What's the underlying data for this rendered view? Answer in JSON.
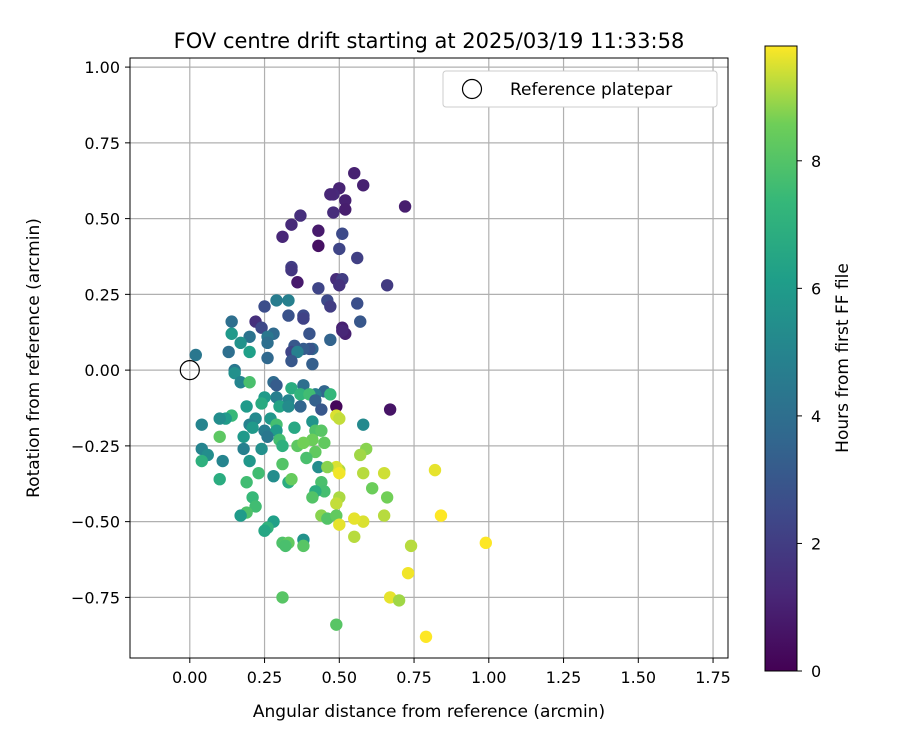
{
  "chart_data": {
    "type": "scatter",
    "title": "FOV centre drift starting at 2025/03/19 11:33:58",
    "xlabel": "Angular distance from reference (arcmin)",
    "ylabel": "Rotation from reference (arcmin)",
    "xlim": [
      -0.2,
      1.8
    ],
    "ylim": [
      -0.95,
      1.03
    ],
    "xticks": [
      0.0,
      0.25,
      0.5,
      0.75,
      1.0,
      1.25,
      1.5,
      1.75
    ],
    "xtick_labels": [
      "0.00",
      "0.25",
      "0.50",
      "0.75",
      "1.00",
      "1.25",
      "1.50",
      "1.75"
    ],
    "yticks": [
      -0.75,
      -0.5,
      -0.25,
      0.0,
      0.25,
      0.5,
      0.75,
      1.0
    ],
    "ytick_labels": [
      "−0.75",
      "−0.50",
      "−0.25",
      "0.00",
      "0.25",
      "0.50",
      "0.75",
      "1.00"
    ],
    "grid": true,
    "legend": {
      "position": "top-right",
      "entries": [
        {
          "label": "Reference platepar",
          "marker": "open-circle"
        }
      ]
    },
    "reference_point": {
      "x": 0.0,
      "y": 0.0
    },
    "colorbar": {
      "label": "Hours from first FF file",
      "colormap": "viridis",
      "range": [
        0,
        9.8
      ],
      "ticks": [
        0,
        2,
        4,
        6,
        8
      ],
      "tick_labels": [
        "0",
        "2",
        "4",
        "6",
        "8"
      ]
    },
    "points": [
      {
        "x": 0.55,
        "y": 0.65,
        "c": 1.0
      },
      {
        "x": 0.58,
        "y": 0.61,
        "c": 1.0
      },
      {
        "x": 0.5,
        "y": 0.6,
        "c": 1.1
      },
      {
        "x": 0.48,
        "y": 0.58,
        "c": 1.3
      },
      {
        "x": 0.47,
        "y": 0.58,
        "c": 1.2
      },
      {
        "x": 0.52,
        "y": 0.56,
        "c": 1.0
      },
      {
        "x": 0.72,
        "y": 0.54,
        "c": 0.9
      },
      {
        "x": 0.52,
        "y": 0.53,
        "c": 0.9
      },
      {
        "x": 0.48,
        "y": 0.52,
        "c": 1.4
      },
      {
        "x": 0.37,
        "y": 0.51,
        "c": 1.5
      },
      {
        "x": 0.34,
        "y": 0.48,
        "c": 1.3
      },
      {
        "x": 0.43,
        "y": 0.46,
        "c": 0.8
      },
      {
        "x": 0.31,
        "y": 0.44,
        "c": 1.2
      },
      {
        "x": 0.51,
        "y": 0.45,
        "c": 2.5
      },
      {
        "x": 0.43,
        "y": 0.41,
        "c": 0.5
      },
      {
        "x": 0.5,
        "y": 0.4,
        "c": 2.3
      },
      {
        "x": 0.56,
        "y": 0.37,
        "c": 2.1
      },
      {
        "x": 0.34,
        "y": 0.34,
        "c": 2.0
      },
      {
        "x": 0.34,
        "y": 0.33,
        "c": 1.8
      },
      {
        "x": 0.49,
        "y": 0.3,
        "c": 1.4
      },
      {
        "x": 0.51,
        "y": 0.3,
        "c": 2.0
      },
      {
        "x": 0.36,
        "y": 0.29,
        "c": 0.8
      },
      {
        "x": 0.5,
        "y": 0.28,
        "c": 1.6
      },
      {
        "x": 0.66,
        "y": 0.28,
        "c": 1.9
      },
      {
        "x": 0.43,
        "y": 0.27,
        "c": 2.3
      },
      {
        "x": 0.46,
        "y": 0.23,
        "c": 2.5
      },
      {
        "x": 0.47,
        "y": 0.21,
        "c": 2.0
      },
      {
        "x": 0.56,
        "y": 0.22,
        "c": 2.7
      },
      {
        "x": 0.29,
        "y": 0.23,
        "c": 4.6
      },
      {
        "x": 0.33,
        "y": 0.23,
        "c": 4.8
      },
      {
        "x": 0.25,
        "y": 0.21,
        "c": 2.6
      },
      {
        "x": 0.33,
        "y": 0.18,
        "c": 2.8
      },
      {
        "x": 0.38,
        "y": 0.18,
        "c": 2.5
      },
      {
        "x": 0.38,
        "y": 0.17,
        "c": 2.2
      },
      {
        "x": 0.57,
        "y": 0.16,
        "c": 3.0
      },
      {
        "x": 0.22,
        "y": 0.16,
        "c": 1.5
      },
      {
        "x": 0.24,
        "y": 0.14,
        "c": 2.4
      },
      {
        "x": 0.14,
        "y": 0.16,
        "c": 4.0
      },
      {
        "x": 0.51,
        "y": 0.14,
        "c": 1.0
      },
      {
        "x": 0.52,
        "y": 0.12,
        "c": 1.0
      },
      {
        "x": 0.51,
        "y": 0.13,
        "c": 1.2
      },
      {
        "x": 0.4,
        "y": 0.12,
        "c": 2.9
      },
      {
        "x": 0.28,
        "y": 0.12,
        "c": 3.8
      },
      {
        "x": 0.26,
        "y": 0.11,
        "c": 4.4
      },
      {
        "x": 0.2,
        "y": 0.11,
        "c": 4.2
      },
      {
        "x": 0.14,
        "y": 0.12,
        "c": 5.9
      },
      {
        "x": 0.47,
        "y": 0.1,
        "c": 3.5
      },
      {
        "x": 0.17,
        "y": 0.09,
        "c": 5.6
      },
      {
        "x": 0.26,
        "y": 0.09,
        "c": 4.0
      },
      {
        "x": 0.35,
        "y": 0.08,
        "c": 3.0
      },
      {
        "x": 0.41,
        "y": 0.07,
        "c": 3.6
      },
      {
        "x": 0.4,
        "y": 0.07,
        "c": 2.9
      },
      {
        "x": 0.38,
        "y": 0.07,
        "c": 3.2
      },
      {
        "x": 0.13,
        "y": 0.06,
        "c": 4.0
      },
      {
        "x": 0.34,
        "y": 0.06,
        "c": 2.3
      },
      {
        "x": 0.36,
        "y": 0.06,
        "c": 4.8
      },
      {
        "x": 0.02,
        "y": 0.05,
        "c": 4.4
      },
      {
        "x": 0.2,
        "y": 0.06,
        "c": 6.2
      },
      {
        "x": 0.26,
        "y": 0.04,
        "c": 3.7
      },
      {
        "x": 0.34,
        "y": 0.03,
        "c": 3.0
      },
      {
        "x": 0.41,
        "y": 0.02,
        "c": 3.3
      },
      {
        "x": 0.15,
        "y": 0.0,
        "c": 4.4
      },
      {
        "x": 0.15,
        "y": -0.01,
        "c": 5.5
      },
      {
        "x": 0.17,
        "y": -0.04,
        "c": 5.0
      },
      {
        "x": 0.28,
        "y": -0.04,
        "c": 3.8
      },
      {
        "x": 0.29,
        "y": -0.05,
        "c": 3.2
      },
      {
        "x": 0.38,
        "y": -0.05,
        "c": 4.0
      },
      {
        "x": 0.2,
        "y": -0.04,
        "c": 7.8
      },
      {
        "x": 0.34,
        "y": -0.06,
        "c": 6.8
      },
      {
        "x": 0.45,
        "y": -0.07,
        "c": 3.6
      },
      {
        "x": 0.42,
        "y": -0.08,
        "c": 4.6
      },
      {
        "x": 0.47,
        "y": -0.08,
        "c": 7.3
      },
      {
        "x": 0.29,
        "y": -0.09,
        "c": 4.7
      },
      {
        "x": 0.25,
        "y": -0.09,
        "c": 6.0
      },
      {
        "x": 0.37,
        "y": -0.08,
        "c": 7.2
      },
      {
        "x": 0.4,
        "y": -0.08,
        "c": 7.6
      },
      {
        "x": 0.42,
        "y": -0.1,
        "c": 3.4
      },
      {
        "x": 0.33,
        "y": -0.1,
        "c": 5.0
      },
      {
        "x": 0.24,
        "y": -0.11,
        "c": 6.7
      },
      {
        "x": 0.3,
        "y": -0.12,
        "c": 6.4
      },
      {
        "x": 0.33,
        "y": -0.12,
        "c": 5.3
      },
      {
        "x": 0.37,
        "y": -0.12,
        "c": 3.6
      },
      {
        "x": 0.19,
        "y": -0.12,
        "c": 6.0
      },
      {
        "x": 0.49,
        "y": -0.12,
        "c": 0.2
      },
      {
        "x": 0.67,
        "y": -0.13,
        "c": 0.6
      },
      {
        "x": 0.44,
        "y": -0.13,
        "c": 3.0
      },
      {
        "x": 0.14,
        "y": -0.15,
        "c": 7.4
      },
      {
        "x": 0.12,
        "y": -0.16,
        "c": 6.0
      },
      {
        "x": 0.1,
        "y": -0.16,
        "c": 5.4
      },
      {
        "x": 0.49,
        "y": -0.15,
        "c": 9.5
      },
      {
        "x": 0.5,
        "y": -0.16,
        "c": 9.3
      },
      {
        "x": 0.22,
        "y": -0.16,
        "c": 5.2
      },
      {
        "x": 0.27,
        "y": -0.16,
        "c": 5.8
      },
      {
        "x": 0.04,
        "y": -0.18,
        "c": 5.0
      },
      {
        "x": 0.41,
        "y": -0.17,
        "c": 5.7
      },
      {
        "x": 0.58,
        "y": -0.18,
        "c": 5.2
      },
      {
        "x": 0.2,
        "y": -0.18,
        "c": 4.9
      },
      {
        "x": 0.21,
        "y": -0.19,
        "c": 5.9
      },
      {
        "x": 0.29,
        "y": -0.18,
        "c": 7.7
      },
      {
        "x": 0.35,
        "y": -0.19,
        "c": 6.6
      },
      {
        "x": 0.25,
        "y": -0.2,
        "c": 4.6
      },
      {
        "x": 0.29,
        "y": -0.2,
        "c": 6.0
      },
      {
        "x": 0.42,
        "y": -0.2,
        "c": 7.9
      },
      {
        "x": 0.44,
        "y": -0.2,
        "c": 8.1
      },
      {
        "x": 0.18,
        "y": -0.22,
        "c": 5.9
      },
      {
        "x": 0.26,
        "y": -0.22,
        "c": 4.4
      },
      {
        "x": 0.1,
        "y": -0.22,
        "c": 8.2
      },
      {
        "x": 0.3,
        "y": -0.23,
        "c": 7.7
      },
      {
        "x": 0.41,
        "y": -0.23,
        "c": 8.5
      },
      {
        "x": 0.45,
        "y": -0.24,
        "c": 8.3
      },
      {
        "x": 0.31,
        "y": -0.25,
        "c": 7.0
      },
      {
        "x": 0.36,
        "y": -0.25,
        "c": 8.2
      },
      {
        "x": 0.38,
        "y": -0.24,
        "c": 8.6
      },
      {
        "x": 0.04,
        "y": -0.26,
        "c": 5.0
      },
      {
        "x": 0.06,
        "y": -0.28,
        "c": 5.4
      },
      {
        "x": 0.18,
        "y": -0.26,
        "c": 4.8
      },
      {
        "x": 0.24,
        "y": -0.26,
        "c": 5.5
      },
      {
        "x": 0.42,
        "y": -0.27,
        "c": 8.3
      },
      {
        "x": 0.59,
        "y": -0.26,
        "c": 8.8
      },
      {
        "x": 0.57,
        "y": -0.28,
        "c": 9.0
      },
      {
        "x": 0.04,
        "y": -0.3,
        "c": 7.0
      },
      {
        "x": 0.11,
        "y": -0.3,
        "c": 5.0
      },
      {
        "x": 0.2,
        "y": -0.3,
        "c": 5.8
      },
      {
        "x": 0.39,
        "y": -0.29,
        "c": 7.8
      },
      {
        "x": 0.31,
        "y": -0.31,
        "c": 8.0
      },
      {
        "x": 0.43,
        "y": -0.32,
        "c": 5.4
      },
      {
        "x": 0.5,
        "y": -0.33,
        "c": 9.1
      },
      {
        "x": 0.49,
        "y": -0.32,
        "c": 9.5
      },
      {
        "x": 0.5,
        "y": -0.34,
        "c": 9.7
      },
      {
        "x": 0.46,
        "y": -0.32,
        "c": 8.8
      },
      {
        "x": 0.23,
        "y": -0.34,
        "c": 7.6
      },
      {
        "x": 0.28,
        "y": -0.35,
        "c": 5.4
      },
      {
        "x": 0.58,
        "y": -0.34,
        "c": 9.2
      },
      {
        "x": 0.65,
        "y": -0.34,
        "c": 9.4
      },
      {
        "x": 0.82,
        "y": -0.33,
        "c": 9.6
      },
      {
        "x": 0.1,
        "y": -0.36,
        "c": 6.8
      },
      {
        "x": 0.19,
        "y": -0.37,
        "c": 7.6
      },
      {
        "x": 0.33,
        "y": -0.37,
        "c": 6.8
      },
      {
        "x": 0.44,
        "y": -0.37,
        "c": 7.8
      },
      {
        "x": 0.34,
        "y": -0.36,
        "c": 8.4
      },
      {
        "x": 0.45,
        "y": -0.4,
        "c": 7.7
      },
      {
        "x": 0.42,
        "y": -0.4,
        "c": 6.8
      },
      {
        "x": 0.61,
        "y": -0.39,
        "c": 8.5
      },
      {
        "x": 0.21,
        "y": -0.42,
        "c": 7.4
      },
      {
        "x": 0.41,
        "y": -0.42,
        "c": 8.0
      },
      {
        "x": 0.5,
        "y": -0.42,
        "c": 9.1
      },
      {
        "x": 0.66,
        "y": -0.42,
        "c": 8.6
      },
      {
        "x": 0.49,
        "y": -0.44,
        "c": 9.3
      },
      {
        "x": 0.22,
        "y": -0.45,
        "c": 7.6
      },
      {
        "x": 0.19,
        "y": -0.47,
        "c": 7.9
      },
      {
        "x": 0.17,
        "y": -0.48,
        "c": 6.0
      },
      {
        "x": 0.44,
        "y": -0.48,
        "c": 8.8
      },
      {
        "x": 0.46,
        "y": -0.49,
        "c": 8.0
      },
      {
        "x": 0.49,
        "y": -0.48,
        "c": 8.3
      },
      {
        "x": 0.58,
        "y": -0.5,
        "c": 9.5
      },
      {
        "x": 0.65,
        "y": -0.48,
        "c": 9.2
      },
      {
        "x": 0.84,
        "y": -0.48,
        "c": 9.8
      },
      {
        "x": 0.55,
        "y": -0.49,
        "c": 9.6
      },
      {
        "x": 0.28,
        "y": -0.5,
        "c": 6.2
      },
      {
        "x": 0.5,
        "y": -0.51,
        "c": 9.6
      },
      {
        "x": 0.26,
        "y": -0.52,
        "c": 7.1
      },
      {
        "x": 0.25,
        "y": -0.53,
        "c": 6.5
      },
      {
        "x": 0.55,
        "y": -0.55,
        "c": 9.2
      },
      {
        "x": 0.31,
        "y": -0.57,
        "c": 7.9
      },
      {
        "x": 0.33,
        "y": -0.57,
        "c": 8.3
      },
      {
        "x": 0.38,
        "y": -0.56,
        "c": 5.6
      },
      {
        "x": 0.38,
        "y": -0.58,
        "c": 8.1
      },
      {
        "x": 0.32,
        "y": -0.58,
        "c": 7.8
      },
      {
        "x": 0.74,
        "y": -0.58,
        "c": 9.2
      },
      {
        "x": 0.99,
        "y": -0.57,
        "c": 9.8
      },
      {
        "x": 0.73,
        "y": -0.67,
        "c": 9.7
      },
      {
        "x": 0.31,
        "y": -0.75,
        "c": 8.1
      },
      {
        "x": 0.67,
        "y": -0.75,
        "c": 9.6
      },
      {
        "x": 0.7,
        "y": -0.76,
        "c": 9.0
      },
      {
        "x": 0.49,
        "y": -0.84,
        "c": 8.1
      },
      {
        "x": 0.79,
        "y": -0.88,
        "c": 9.8
      }
    ]
  }
}
